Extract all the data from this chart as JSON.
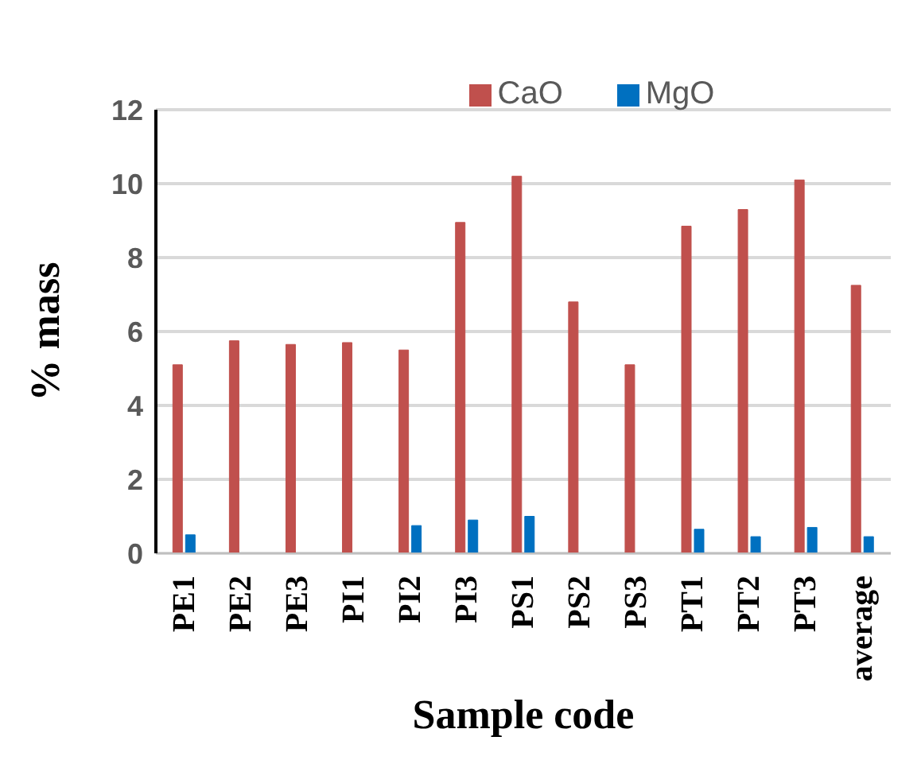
{
  "chart_data": {
    "type": "bar",
    "xlabel": "Sample code",
    "ylabel": "% mass",
    "categories": [
      "PE1",
      "PE2",
      "PE3",
      "PI1",
      "PI2",
      "PI3",
      "PS1",
      "PS2",
      "PS3",
      "PT1",
      "PT2",
      "PT3",
      "average"
    ],
    "series": [
      {
        "name": "CaO",
        "color": "#c0504d",
        "values": [
          5.1,
          5.75,
          5.65,
          5.7,
          5.5,
          8.95,
          10.2,
          6.8,
          5.1,
          8.85,
          9.3,
          10.1,
          7.25
        ]
      },
      {
        "name": "MgO",
        "color": "#0070c0",
        "values": [
          0.5,
          0,
          0,
          0,
          0.75,
          0.9,
          1.0,
          0,
          0,
          0.65,
          0.45,
          0.7,
          0.45
        ]
      }
    ],
    "ylim": [
      0,
      12
    ],
    "yticks": [
      0,
      2,
      4,
      6,
      8,
      10,
      12
    ],
    "grid": "y",
    "legend": "top"
  }
}
